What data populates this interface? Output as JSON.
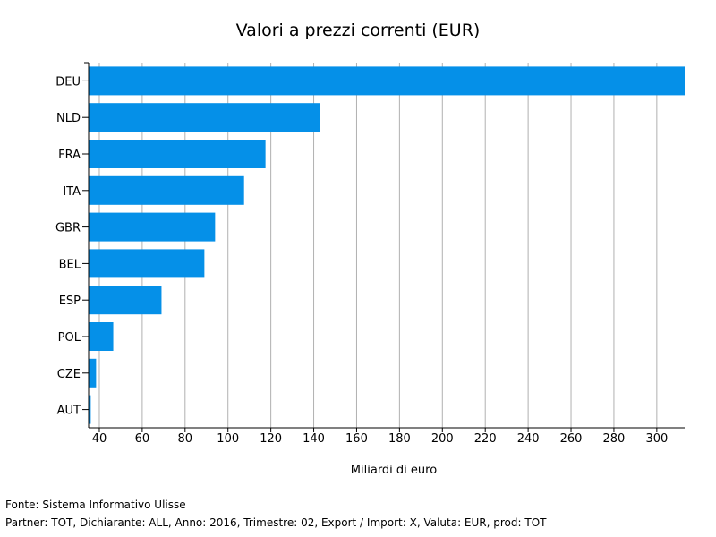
{
  "chart_data": {
    "type": "bar",
    "orientation": "horizontal",
    "title": "Valori a prezzi correnti (EUR)",
    "xlabel": "Miliardi di euro",
    "ylabel": "",
    "categories": [
      "DEU",
      "NLD",
      "FRA",
      "ITA",
      "GBR",
      "BEL",
      "ESP",
      "POL",
      "CZE",
      "AUT"
    ],
    "values": [
      313,
      143,
      117.5,
      107.5,
      94,
      89,
      69,
      46.5,
      38.5,
      36
    ],
    "xlim": [
      35,
      313
    ],
    "xticks": [
      40,
      60,
      80,
      100,
      120,
      140,
      160,
      180,
      200,
      220,
      240,
      260,
      280,
      300
    ],
    "grid": true,
    "legend": "none",
    "bar_color": "#0590e8",
    "grid_color": "#b0b0b0"
  },
  "footer": {
    "source": "Fonte: Sistema Informativo Ulisse",
    "details": "Partner: TOT, Dichiarante: ALL, Anno: 2016, Trimestre: 02, Export / Import: X, Valuta: EUR, prod: TOT"
  }
}
